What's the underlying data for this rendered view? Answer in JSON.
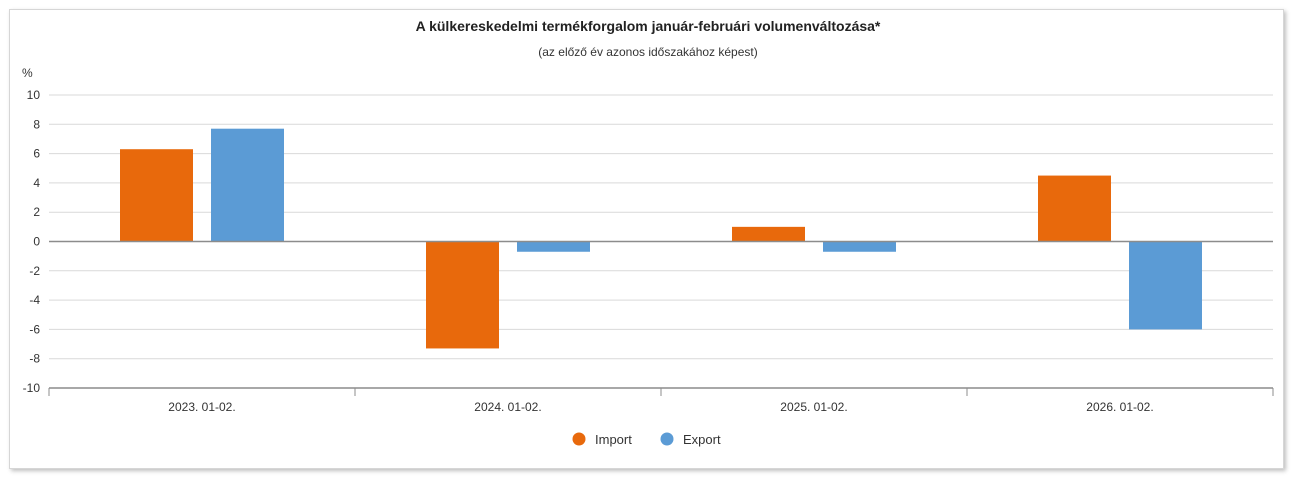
{
  "chart_data": {
    "type": "bar",
    "title": "A külkereskedelmi termékforgalom január-februári volumenváltozása*",
    "subtitle": "(az előző év azonos időszakához képest)",
    "ylabel": "%",
    "xlabel": "",
    "ylim": [
      -10,
      10
    ],
    "yticks": [
      10,
      8,
      6,
      4,
      2,
      0,
      -2,
      -4,
      -6,
      -8,
      -10
    ],
    "grid": true,
    "legend_position": "bottom",
    "categories": [
      "2023. 01-02.",
      "2024. 01-02.",
      "2025. 01-02.",
      "2026. 01-02."
    ],
    "series": [
      {
        "name": "Import",
        "color": "#e8690c",
        "values": [
          6.3,
          -7.3,
          1.0,
          4.5
        ]
      },
      {
        "name": "Export",
        "color": "#5b9bd5",
        "values": [
          7.7,
          -0.7,
          -0.7,
          -6.0
        ]
      }
    ]
  }
}
